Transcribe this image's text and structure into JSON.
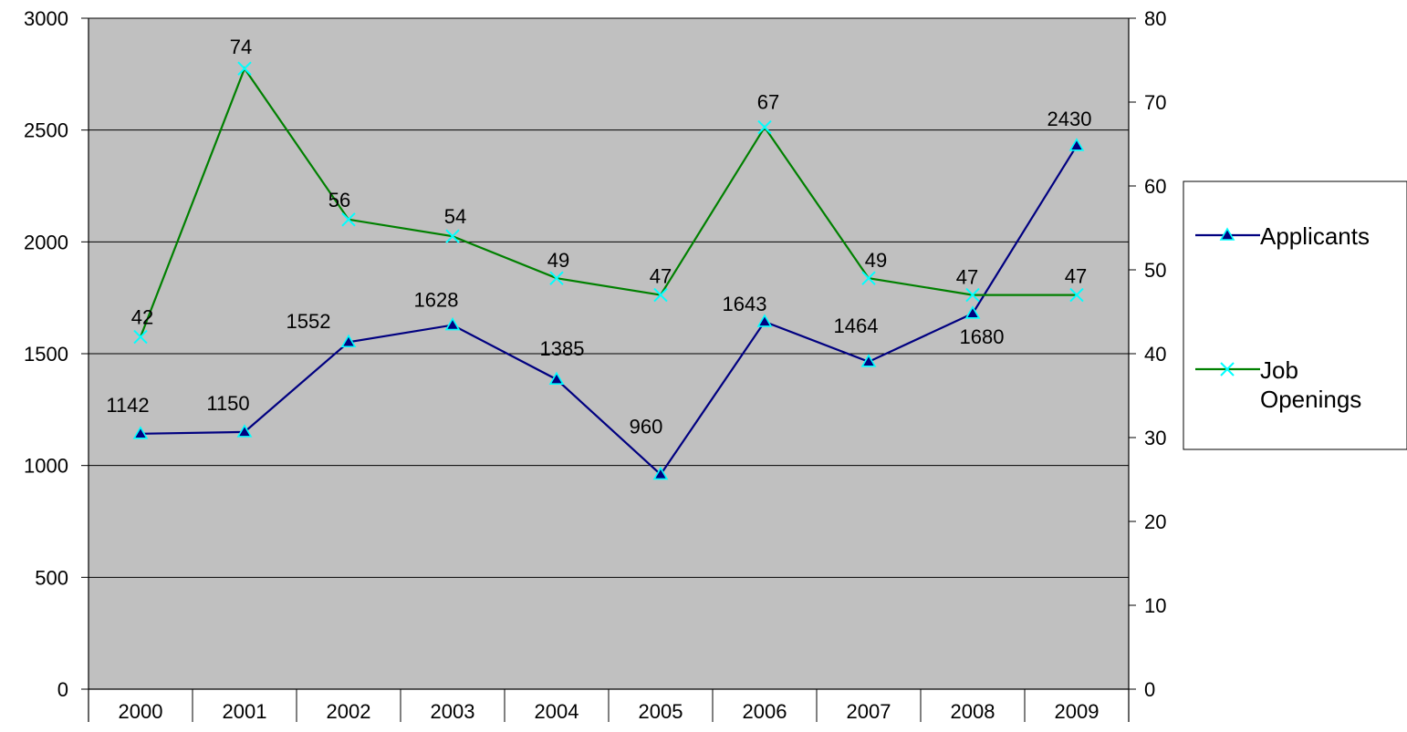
{
  "chart_data": {
    "type": "line",
    "title": "",
    "categories": [
      "2000",
      "2001",
      "2002",
      "2003",
      "2004",
      "2005",
      "2006",
      "2007",
      "2008",
      "2009"
    ],
    "y_left": {
      "min": 0,
      "max": 3000,
      "step": 500,
      "ticks": [
        "0",
        "500",
        "1000",
        "1500",
        "2000",
        "2500",
        "3000"
      ]
    },
    "y_right": {
      "min": 0,
      "max": 80,
      "step": 10,
      "ticks": [
        "0",
        "10",
        "20",
        "30",
        "40",
        "50",
        "60",
        "70",
        "80"
      ]
    },
    "grid": true,
    "plot_background": "#c0c0c0",
    "legend": {
      "position": "right"
    },
    "series": [
      {
        "name": "Applicants",
        "axis": "left",
        "color": "#000080",
        "marker": "triangle",
        "marker_color": "#00ffff",
        "values": [
          1142,
          1150,
          1552,
          1628,
          1385,
          960,
          1643,
          1464,
          1680,
          2430
        ],
        "labels": [
          "1142",
          "1150",
          "1552",
          "1628",
          "1385",
          "960",
          "1643",
          "1464",
          "1680",
          "2430"
        ]
      },
      {
        "name": "Job Openings",
        "legend_lines": [
          "Job",
          "Openings"
        ],
        "axis": "right",
        "color": "#008000",
        "marker": "x",
        "marker_color": "#00ffff",
        "values": [
          42,
          74,
          56,
          54,
          49,
          47,
          67,
          49,
          47,
          47
        ],
        "labels": [
          "42",
          "74",
          "56",
          "54",
          "49",
          "47",
          "67",
          "49",
          "47",
          "47"
        ]
      }
    ]
  }
}
